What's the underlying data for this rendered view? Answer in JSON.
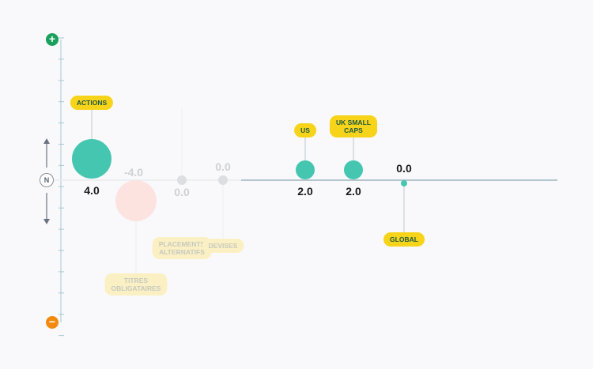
{
  "chart_data": {
    "type": "scatter",
    "title": "",
    "xlabel": "",
    "ylabel": "",
    "ylim": [
      -5,
      5
    ],
    "grid": false,
    "colors": {
      "positive": "#45c6b0",
      "negative": "#fde3df",
      "neutral": "#dcdee2",
      "tag": "#f7d319",
      "tag_faded": "#fbf0c4",
      "axis": "#a7c8d6",
      "plus": "#1aa05d",
      "minus": "#f28a0f"
    },
    "axis": {
      "top_label": "+",
      "bottom_label": "−",
      "middle_label": "N"
    },
    "points": [
      {
        "name": "ACTIONS",
        "value": 4.0,
        "value_label": "4.0",
        "faded": false
      },
      {
        "name": "TITRES\nOBLIGATAIRES",
        "value": -4.0,
        "value_label": "-4.0",
        "faded": true
      },
      {
        "name": "PLACEMENTS\nALTERNATIFS",
        "value": 0.0,
        "value_label": "0.0",
        "faded": true
      },
      {
        "name": "DEVISES",
        "value": 0.0,
        "value_label": "0.0",
        "faded": true
      },
      {
        "name": "US",
        "value": 2.0,
        "value_label": "2.0",
        "faded": false
      },
      {
        "name": "UK SMALL\nCAPS",
        "value": 2.0,
        "value_label": "2.0",
        "faded": false
      },
      {
        "name": "GLOBAL",
        "value": 0.0,
        "value_label": "0.0",
        "faded": false
      }
    ]
  }
}
